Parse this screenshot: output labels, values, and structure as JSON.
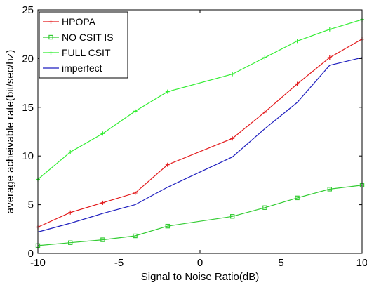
{
  "chart_data": {
    "type": "line",
    "title": "",
    "xlabel": "Signal to Noise Ratio(dB)",
    "ylabel": "average acheivable rate(bit/sec/hz)",
    "xlim": [
      -10,
      10
    ],
    "ylim": [
      0,
      25
    ],
    "xticks": [
      -10,
      -5,
      0,
      5,
      10
    ],
    "yticks": [
      0,
      5,
      10,
      15,
      20,
      25
    ],
    "grid": false,
    "legend_position": "top-left",
    "x": [
      -10,
      -8,
      -6,
      -4,
      -2,
      2,
      4,
      6,
      8,
      10
    ],
    "series": [
      {
        "name": "HPOPA",
        "color": "#e31a1c",
        "marker": "plus",
        "values": [
          2.7,
          4.2,
          5.2,
          6.2,
          9.1,
          11.8,
          14.5,
          17.4,
          20.1,
          22.0
        ]
      },
      {
        "name": "NO CSIT IS",
        "color": "#33cc33",
        "marker": "square",
        "values": [
          0.8,
          1.1,
          1.4,
          1.8,
          2.8,
          3.8,
          4.7,
          5.7,
          6.6,
          7.0
        ]
      },
      {
        "name": "FULL CSIT",
        "color": "#33ee33",
        "marker": "plus",
        "values": [
          7.6,
          10.4,
          12.3,
          14.6,
          16.6,
          18.4,
          20.1,
          21.8,
          23.0,
          24.0
        ]
      },
      {
        "name": "imperfect",
        "color": "#1f1fbf",
        "marker": "none",
        "values": [
          2.2,
          3.1,
          4.1,
          5.0,
          6.8,
          9.9,
          12.8,
          15.5,
          19.3,
          20.1
        ]
      }
    ]
  }
}
